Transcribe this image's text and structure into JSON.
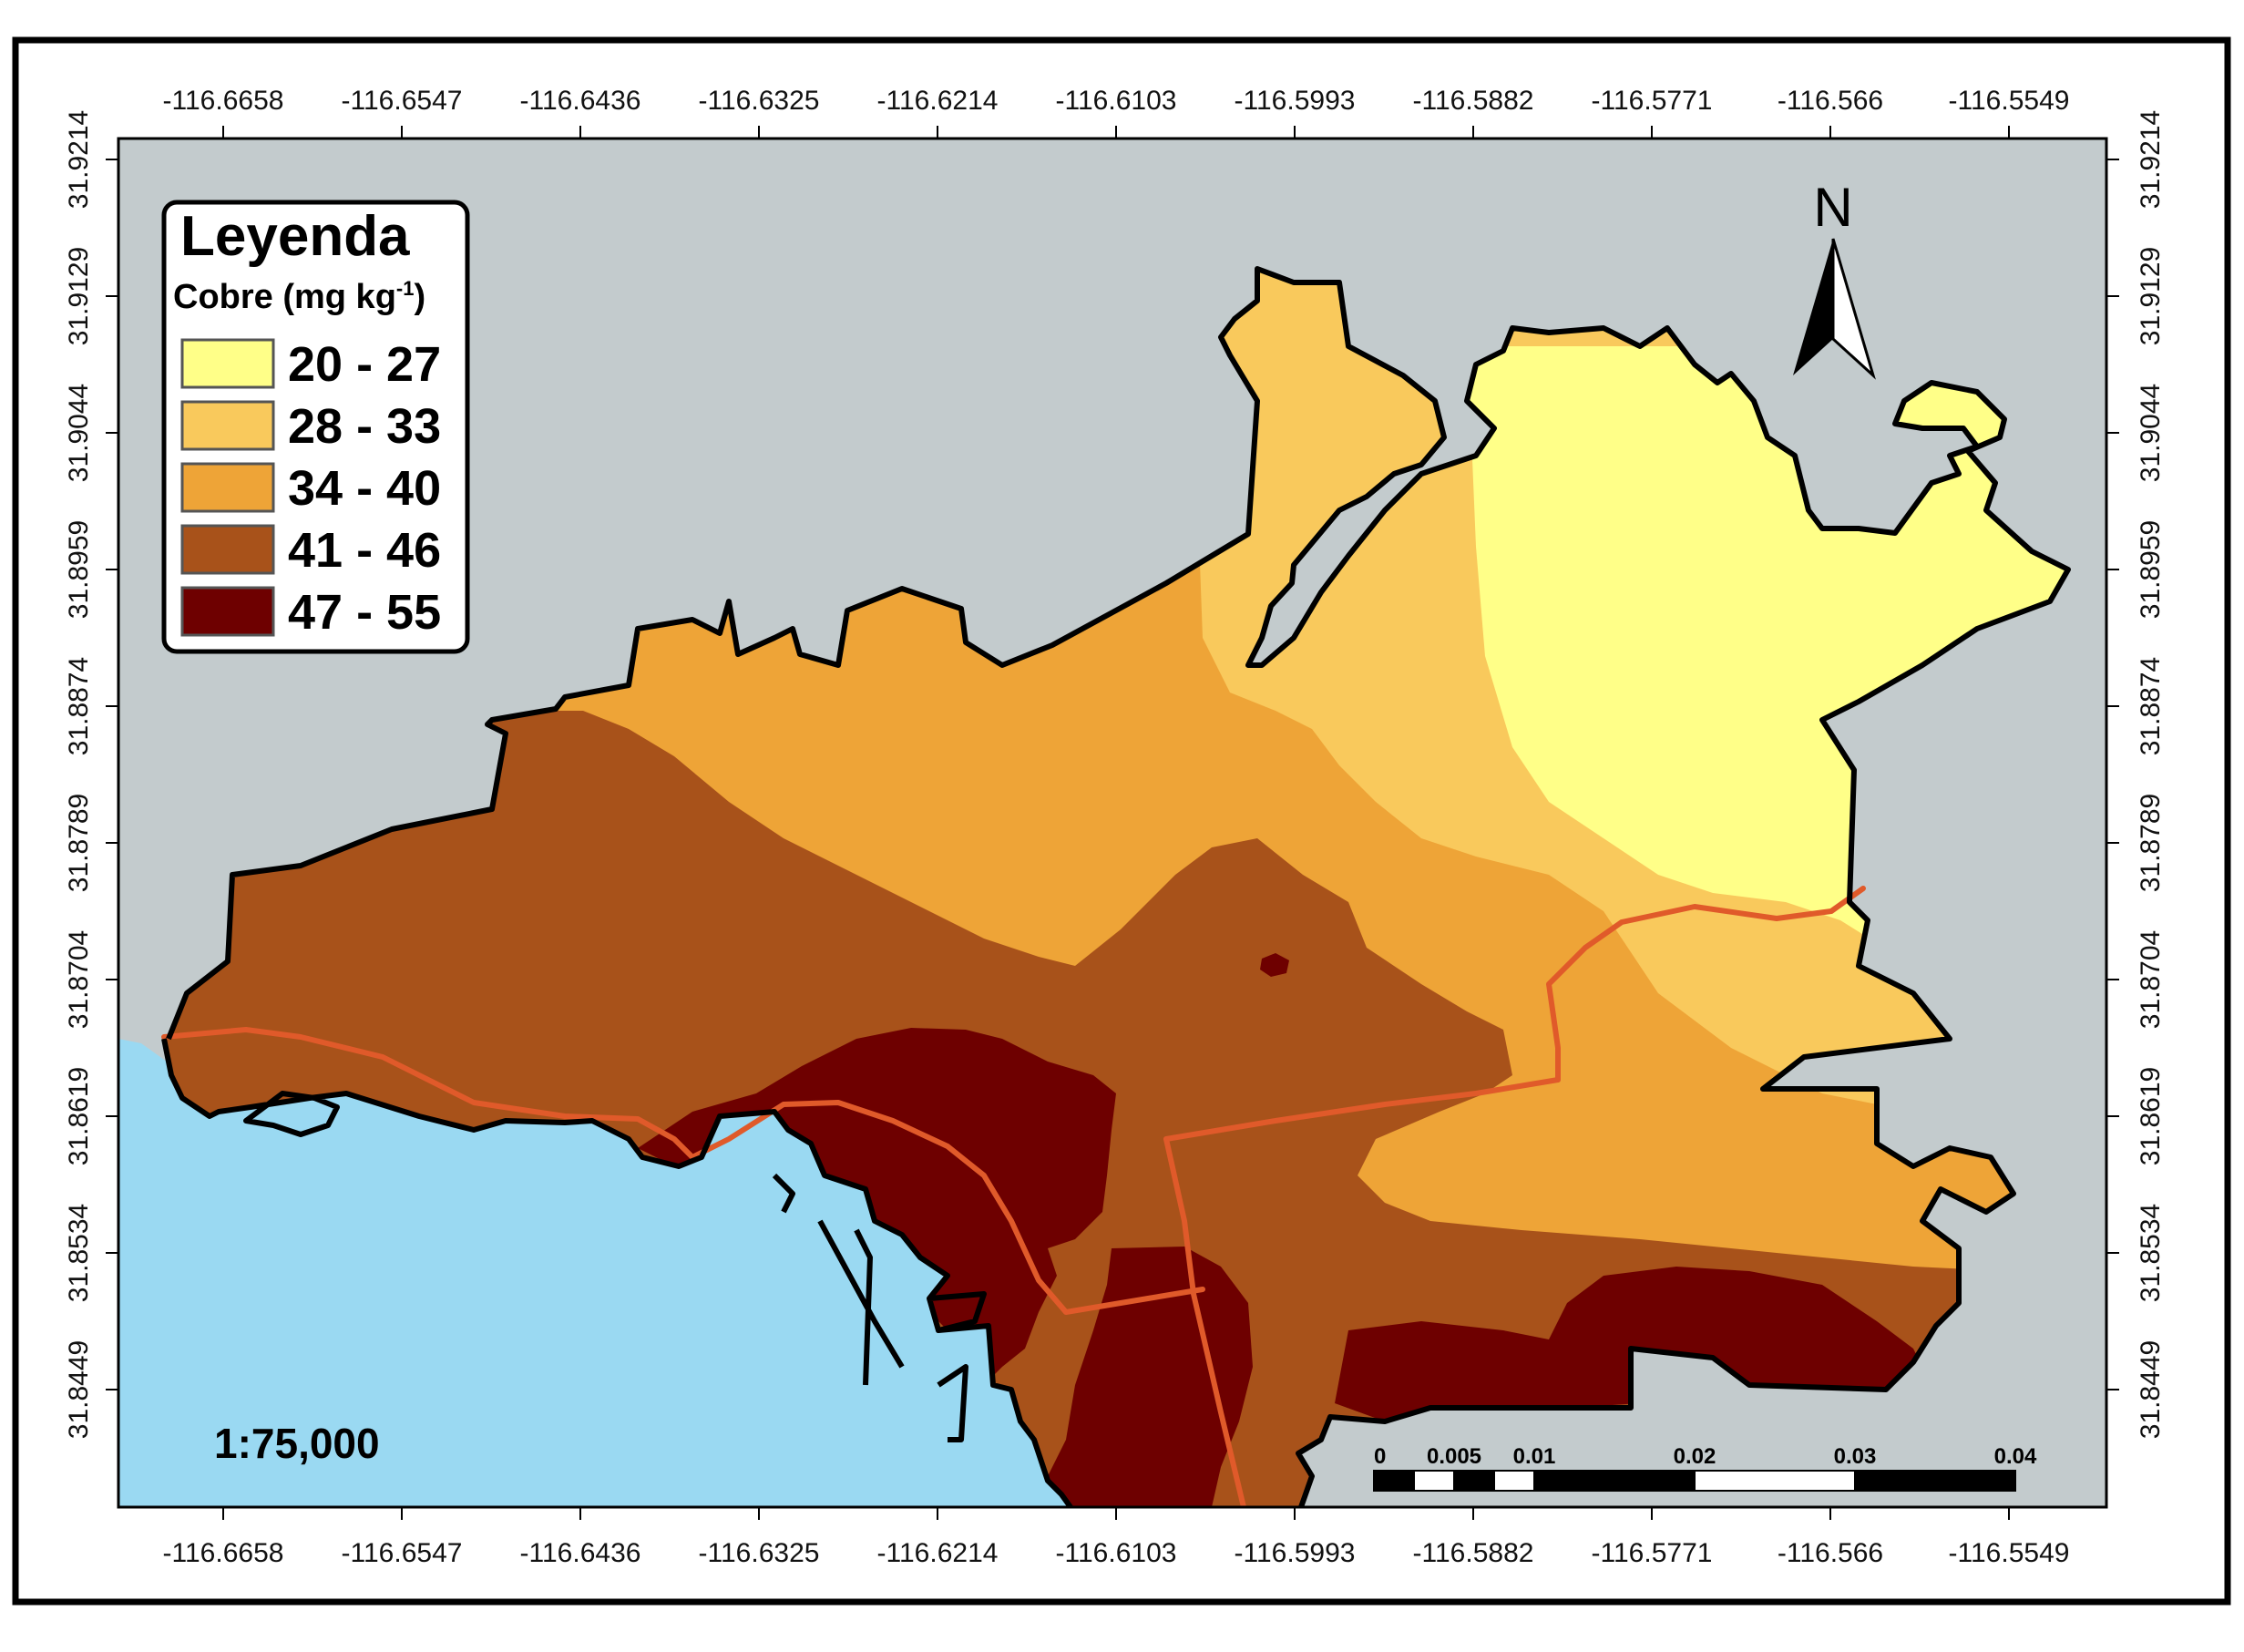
{
  "legend": {
    "title": "Leyenda",
    "subtitle_main": "Cobre (mg kg",
    "subtitle_sup": "-1",
    "subtitle_end": ")",
    "classes": [
      {
        "label": "20 - 27",
        "color": "#FFFF88"
      },
      {
        "label": "28 - 33",
        "color": "#F9C95C"
      },
      {
        "label": "34 - 40",
        "color": "#EEA437"
      },
      {
        "label": "41 - 46",
        "color": "#A8521A"
      },
      {
        "label": "47 - 55",
        "color": "#6E0000"
      }
    ]
  },
  "axes": {
    "longitude_ticks": [
      "-116.6658",
      "-116.6547",
      "-116.6436",
      "-116.6325",
      "-116.6214",
      "-116.6103",
      "-116.5993",
      "-116.5882",
      "-116.5771",
      "-116.566",
      "-116.5549"
    ],
    "latitude_ticks": [
      "31.9214",
      "31.9129",
      "31.9044",
      "31.8959",
      "31.8874",
      "31.8789",
      "31.8704",
      "31.8619",
      "31.8534",
      "31.8449"
    ]
  },
  "scale": {
    "text": "1:75,000"
  },
  "scale_bar": {
    "labels": [
      "0",
      "0.005",
      "0.01",
      "0.02",
      "0.03",
      "0.04"
    ],
    "values": [
      0,
      0.005,
      0.01,
      0.02,
      0.03,
      0.04
    ]
  },
  "north_arrow": {
    "letter": "N",
    "icon": "north-arrow-icon"
  },
  "colors": {
    "land_background": "#C3CBCD",
    "sea": "#9AD9F2",
    "boundary": "#000000",
    "roads": "#E05A2A"
  }
}
